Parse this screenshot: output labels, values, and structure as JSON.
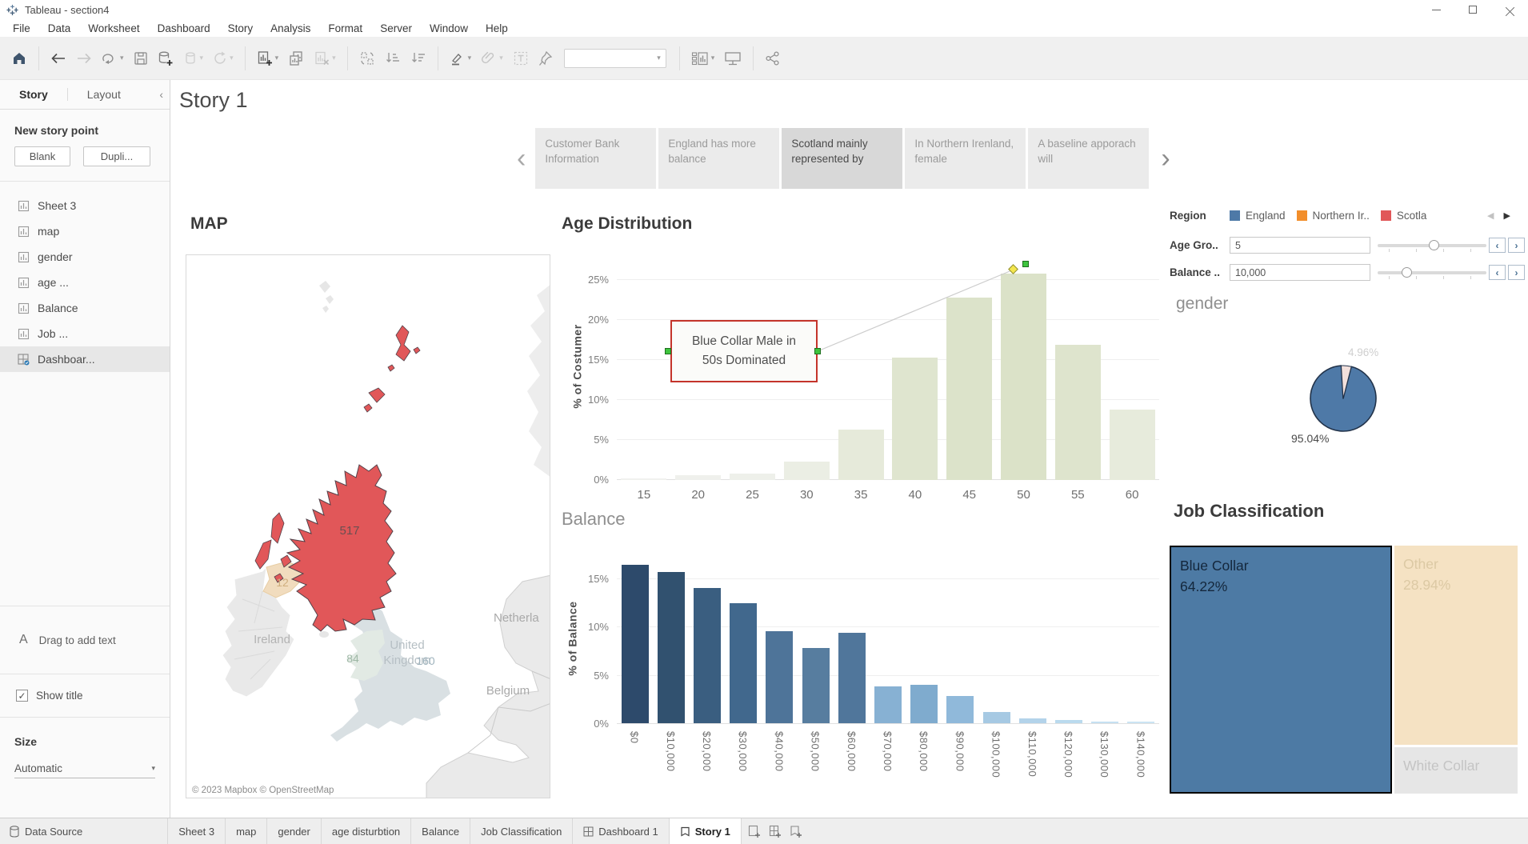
{
  "window": {
    "title": "Tableau - section4"
  },
  "menu": {
    "items": [
      "File",
      "Data",
      "Worksheet",
      "Dashboard",
      "Story",
      "Analysis",
      "Format",
      "Server",
      "Window",
      "Help"
    ]
  },
  "toolbar": {
    "show_me_label": "Show Me"
  },
  "sidebar": {
    "tabs": {
      "story": "Story",
      "layout": "Layout"
    },
    "collapse_icon": "‹",
    "new_story_point": "New story point",
    "blank_button": "Blank",
    "duplicate_button": "Dupli...",
    "sheets": [
      {
        "label": "Sheet 3",
        "type": "worksheet",
        "selected": false
      },
      {
        "label": "map",
        "type": "worksheet",
        "selected": false
      },
      {
        "label": "gender",
        "type": "worksheet",
        "selected": false
      },
      {
        "label": "age ...",
        "type": "worksheet",
        "selected": false
      },
      {
        "label": "Balance",
        "type": "worksheet",
        "selected": false
      },
      {
        "label": "Job ...",
        "type": "worksheet",
        "selected": false
      },
      {
        "label": "Dashboar...",
        "type": "dashboard",
        "selected": true
      }
    ],
    "text_object_icon": "A",
    "drag_text": "Drag to add text",
    "show_title_label": "Show title",
    "show_title_checked": "✓",
    "size_label": "Size",
    "size_value": "Automatic"
  },
  "story": {
    "title": "Story 1",
    "captions": [
      {
        "label": "Customer Bank Information",
        "active": false
      },
      {
        "label": "England has more balance",
        "active": false
      },
      {
        "label": "Scotland mainly represented by",
        "active": true
      },
      {
        "label": "In Northern Irenland, female",
        "active": false
      },
      {
        "label": "A baseline apporach will",
        "active": false
      }
    ]
  },
  "map_panel": {
    "title": "MAP",
    "scotland_value": "517",
    "ni_value": "12",
    "wales_value": "84",
    "england_value": "160",
    "ireland_label": "Ireland",
    "uk_label_line1": "United",
    "uk_label_line2": "Kingdom",
    "netherlands_label": "Netherla",
    "belgium_label": "Belgium",
    "attribution": "© 2023 Mapbox © OpenStreetMap"
  },
  "chart_data": [
    {
      "id": "age_chart",
      "type": "bar",
      "title": "Age Distribution",
      "ylabel": "% of Costumer",
      "yticks": [
        0,
        5,
        10,
        15,
        20,
        25
      ],
      "ytick_suffix": "%",
      "categories": [
        "15",
        "20",
        "25",
        "30",
        "35",
        "40",
        "45",
        "50",
        "55",
        "60"
      ],
      "values": [
        0.2,
        0.6,
        0.8,
        2.3,
        6.3,
        15.3,
        22.8,
        25.8,
        16.9,
        8.8
      ],
      "bar_colors": [
        "#f0f1ee",
        "#eff0ec",
        "#eef0ea",
        "#ebeee4",
        "#e6eada",
        "#dfe5cf",
        "#dce3ca",
        "#dbe2c8",
        "#dee4cd",
        "#e7ebdc"
      ],
      "ylim": [
        0,
        27
      ],
      "annotation": {
        "line1": "Blue Collar Male in",
        "line2": "50s Dominated"
      }
    },
    {
      "id": "balance_chart",
      "type": "bar",
      "title": "Balance",
      "ylabel": "% of Balance",
      "yticks": [
        0,
        5,
        10,
        15
      ],
      "ytick_suffix": "%",
      "categories": [
        "$0",
        "$10,000",
        "$20,000",
        "$30,000",
        "$40,000",
        "$50,000",
        "$60,000",
        "$70,000",
        "$80,000",
        "$90,000",
        "$100,000",
        "$110,000",
        "$120,000",
        "$130,000",
        "$140,000"
      ],
      "values": [
        16.4,
        15.7,
        14.0,
        12.4,
        9.5,
        7.8,
        9.4,
        3.8,
        4.0,
        2.8,
        1.2,
        0.5,
        0.35,
        0.2,
        0.15
      ],
      "bar_colors": [
        "#2d4a6b",
        "#31516f",
        "#3a5e80",
        "#41688d",
        "#4e7499",
        "#577d9f",
        "#50769b",
        "#87b1d3",
        "#7fabce",
        "#90b9da",
        "#a6c9e3",
        "#b3d3ea",
        "#badaee",
        "#c5e0f1",
        "#cbe4f3"
      ],
      "ylim": [
        0,
        17
      ]
    },
    {
      "id": "gender_chart",
      "type": "pie",
      "title": "gender",
      "slices": [
        {
          "label": "95.04%",
          "value": 95.04,
          "color": "#4e79a7"
        },
        {
          "label": "4.96%",
          "value": 4.96,
          "color": "#f2e0dc"
        }
      ]
    },
    {
      "id": "job_chart",
      "type": "treemap",
      "title": "Job Classification",
      "items": [
        {
          "label": "Blue Collar",
          "pct": "64.22%",
          "color": "#4d7aa4",
          "selected": true
        },
        {
          "label": "Other",
          "pct": "28.94%",
          "color": "#f5e2c3",
          "selected": false
        },
        {
          "label": "White Collar",
          "pct": "",
          "color": "#e6e6e6",
          "selected": false
        }
      ]
    }
  ],
  "filters": {
    "region": {
      "label": "Region",
      "items": [
        {
          "label": "England",
          "color": "#4e79a7"
        },
        {
          "label": "Northern Ir..",
          "color": "#f28e2b"
        },
        {
          "label": "Scotla",
          "color": "#e15759"
        }
      ],
      "pager_left": "◀",
      "pager_right": "▶"
    },
    "age_group": {
      "label": "Age Gro..",
      "value": "5",
      "handle_pct": 47,
      "dec": "‹",
      "inc": "›"
    },
    "balance": {
      "label": "Balance ..",
      "value": "10,000",
      "handle_pct": 22,
      "dec": "‹",
      "inc": "›"
    }
  },
  "statusbar": {
    "data_source_label": "Data Source",
    "tabs": [
      {
        "label": "Sheet 3",
        "icon": "none",
        "active": false
      },
      {
        "label": "map",
        "icon": "none",
        "active": false
      },
      {
        "label": "gender",
        "icon": "none",
        "active": false
      },
      {
        "label": "age disturbtion",
        "icon": "none",
        "active": false
      },
      {
        "label": "Balance",
        "icon": "none",
        "active": false
      },
      {
        "label": "Job Classification",
        "icon": "none",
        "active": false
      },
      {
        "label": "Dashboard 1",
        "icon": "dashboard",
        "active": false
      },
      {
        "label": "Story 1",
        "icon": "story",
        "active": true
      }
    ]
  }
}
